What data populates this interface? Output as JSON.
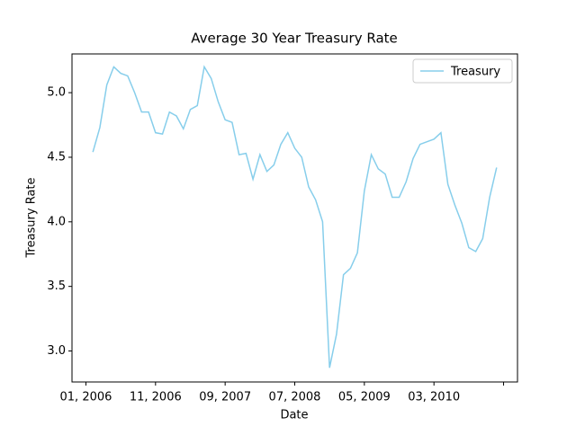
{
  "chart_data": {
    "type": "line",
    "title": "Average 30 Year Treasury Rate",
    "x_label": "Date",
    "y_label": "Treasury Rate",
    "x": [
      "2006-02",
      "2006-03",
      "2006-04",
      "2006-05",
      "2006-06",
      "2006-07",
      "2006-08",
      "2006-09",
      "2006-10",
      "2006-11",
      "2006-12",
      "2007-01",
      "2007-02",
      "2007-03",
      "2007-04",
      "2007-05",
      "2007-06",
      "2007-07",
      "2007-08",
      "2007-09",
      "2007-10",
      "2007-11",
      "2007-12",
      "2008-01",
      "2008-02",
      "2008-03",
      "2008-04",
      "2008-05",
      "2008-06",
      "2008-07",
      "2008-08",
      "2008-09",
      "2008-10",
      "2008-11",
      "2008-12",
      "2009-01",
      "2009-02",
      "2009-03",
      "2009-04",
      "2009-05",
      "2009-06",
      "2009-07",
      "2009-08",
      "2009-09",
      "2009-10",
      "2009-11",
      "2009-12",
      "2010-01",
      "2010-02",
      "2010-03",
      "2010-04",
      "2010-05",
      "2010-06",
      "2010-07",
      "2010-08",
      "2010-09",
      "2010-10",
      "2010-11",
      "2010-12"
    ],
    "series": [
      {
        "name": "Treasury",
        "color": "#87ceeb",
        "values": [
          4.54,
          4.73,
          5.06,
          5.2,
          5.15,
          5.13,
          5.0,
          4.85,
          4.85,
          4.69,
          4.68,
          4.85,
          4.82,
          4.72,
          4.87,
          4.9,
          5.2,
          5.11,
          4.93,
          4.79,
          4.77,
          4.52,
          4.53,
          4.33,
          4.52,
          4.39,
          4.44,
          4.6,
          4.69,
          4.57,
          4.5,
          4.27,
          4.17,
          4.0,
          2.87,
          3.13,
          3.59,
          3.64,
          3.76,
          4.24,
          4.52,
          4.41,
          4.37,
          4.19,
          4.19,
          4.31,
          4.49,
          4.6,
          4.62,
          4.64,
          4.69,
          4.29,
          4.13,
          3.99,
          3.8,
          3.77,
          3.87,
          4.19,
          4.42
        ]
      }
    ],
    "xlim": [
      "2005-11",
      "2011-03"
    ],
    "xticks": [
      {
        "value": "2006-01",
        "label": "01, 2006"
      },
      {
        "value": "2006-11",
        "label": "11, 2006"
      },
      {
        "value": "2007-09",
        "label": "09, 2007"
      },
      {
        "value": "2008-07",
        "label": "07, 2008"
      },
      {
        "value": "2009-05",
        "label": "05, 2009"
      },
      {
        "value": "2010-03",
        "label": "03, 2010"
      },
      {
        "value": "2011-01",
        "label": null
      }
    ],
    "ylim": [
      2.76,
      5.3
    ],
    "yticks": [
      {
        "value": 3.0,
        "label": "3.0"
      },
      3.5,
      {
        "value": 4.0,
        "label": "4.0"
      },
      4.5,
      {
        "value": 5.0,
        "label": "5.0"
      }
    ],
    "legend": "upper right",
    "grid": false
  }
}
